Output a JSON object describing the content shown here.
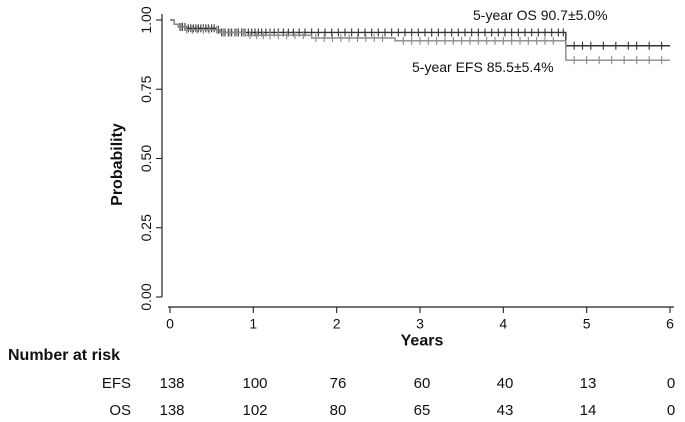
{
  "chart_data": {
    "type": "line",
    "xlabel": "Years",
    "ylabel": "Probability",
    "xlim": [
      0,
      6
    ],
    "ylim": [
      0,
      1
    ],
    "x_ticks": [
      0,
      1,
      2,
      3,
      4,
      5,
      6
    ],
    "x_tick_labels": [
      "0",
      "1",
      "2",
      "3",
      "4",
      "5",
      "6"
    ],
    "y_ticks": [
      0,
      0.25,
      0.5,
      0.75,
      1
    ],
    "y_tick_labels": [
      "0.00",
      "0.25",
      "0.50",
      "0.75",
      "1.00"
    ],
    "grid": false,
    "series": [
      {
        "color": "#333333",
        "steps": [
          [
            0,
            1.0
          ],
          [
            0.05,
            0.985
          ],
          [
            0.1,
            0.975
          ],
          [
            0.2,
            0.97
          ],
          [
            0.55,
            0.965
          ],
          [
            0.6,
            0.955
          ],
          [
            4.75,
            0.955
          ],
          [
            4.75,
            0.907
          ],
          [
            6,
            0.907
          ]
        ],
        "censor_x": [
          0.12,
          0.15,
          0.18,
          0.22,
          0.25,
          0.28,
          0.31,
          0.34,
          0.37,
          0.4,
          0.43,
          0.46,
          0.5,
          0.53,
          0.58,
          0.62,
          0.66,
          0.7,
          0.74,
          0.78,
          0.82,
          0.86,
          0.9,
          0.94,
          0.98,
          1.02,
          1.06,
          1.1,
          1.15,
          1.2,
          1.25,
          1.3,
          1.36,
          1.42,
          1.48,
          1.55,
          1.62,
          1.7,
          1.78,
          1.86,
          1.94,
          2.02,
          2.1,
          2.18,
          2.26,
          2.34,
          2.42,
          2.5,
          2.58,
          2.66,
          2.74,
          2.82,
          2.9,
          2.98,
          3.06,
          3.14,
          3.22,
          3.3,
          3.38,
          3.46,
          3.54,
          3.62,
          3.7,
          3.78,
          3.86,
          3.94,
          4.02,
          4.1,
          4.18,
          4.26,
          4.34,
          4.42,
          4.5,
          4.58,
          4.66,
          4.72,
          4.85,
          4.95,
          5.05,
          5.2,
          5.35,
          5.5,
          5.6,
          5.75,
          5.9
        ]
      },
      {
        "color": "#8a8a8a",
        "steps": [
          [
            0,
            1.0
          ],
          [
            0.05,
            0.985
          ],
          [
            0.1,
            0.975
          ],
          [
            0.2,
            0.965
          ],
          [
            0.6,
            0.955
          ],
          [
            0.9,
            0.945
          ],
          [
            1.7,
            0.935
          ],
          [
            2.7,
            0.925
          ],
          [
            4.75,
            0.925
          ],
          [
            4.75,
            0.855
          ],
          [
            6,
            0.855
          ]
        ],
        "censor_x": [
          0.14,
          0.2,
          0.27,
          0.33,
          0.4,
          0.47,
          0.56,
          0.64,
          0.72,
          0.8,
          0.88,
          0.96,
          1.04,
          1.12,
          1.2,
          1.3,
          1.4,
          1.5,
          1.6,
          1.75,
          1.85,
          1.95,
          2.05,
          2.15,
          2.25,
          2.35,
          2.45,
          2.55,
          2.8,
          2.9,
          3.0,
          3.1,
          3.2,
          3.3,
          3.4,
          3.5,
          3.6,
          3.7,
          3.8,
          3.9,
          4.0,
          4.1,
          4.2,
          4.3,
          4.4,
          4.5,
          4.6,
          4.85,
          5.0,
          5.15,
          5.3,
          5.45,
          5.6,
          5.75,
          5.9
        ]
      }
    ],
    "annotations": [
      {
        "text": "5-year OS 90.7±5.0%"
      },
      {
        "text": "5-year EFS 85.5±5.4%"
      }
    ]
  },
  "risk_table": {
    "title": "Number at risk",
    "rows": [
      {
        "label": "EFS",
        "values": [
          "138",
          "100",
          "76",
          "60",
          "40",
          "13",
          "0"
        ]
      },
      {
        "label": "OS",
        "values": [
          "138",
          "102",
          "80",
          "65",
          "43",
          "14",
          "0"
        ]
      }
    ]
  }
}
